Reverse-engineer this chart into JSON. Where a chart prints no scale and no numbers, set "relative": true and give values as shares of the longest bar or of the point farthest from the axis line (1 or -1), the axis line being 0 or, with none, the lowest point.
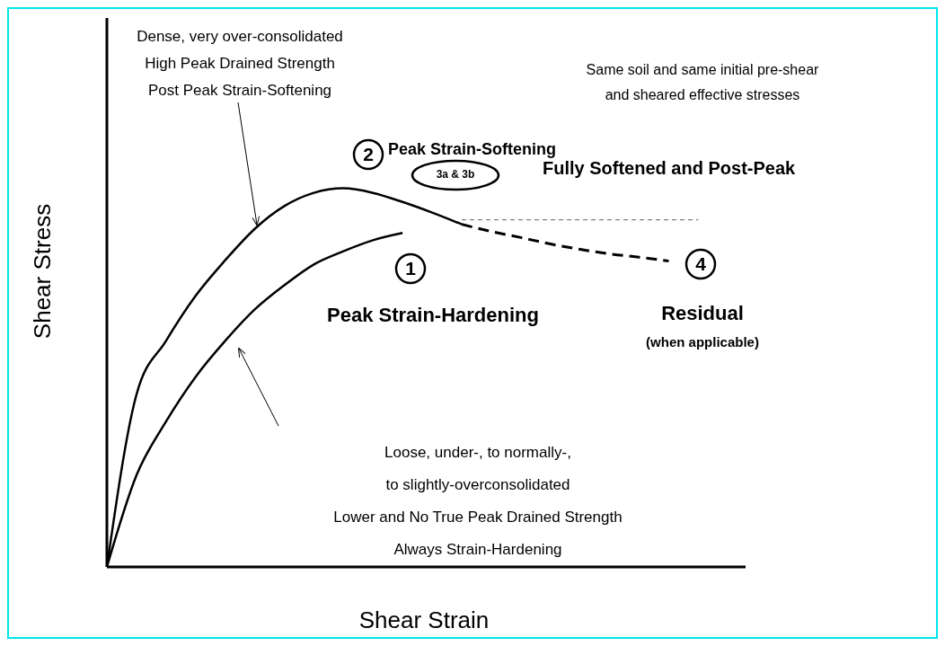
{
  "chart_data": {
    "type": "line",
    "relative": true,
    "xlabel": "Shear Strain",
    "ylabel": "Shear Stress",
    "marker": "none",
    "line_style": "solid",
    "categories": [
      null,
      null,
      null,
      null,
      null,
      null,
      null,
      null,
      null,
      null,
      null,
      null,
      null,
      null,
      null,
      null,
      null,
      null,
      null,
      null,
      null
    ],
    "series": [
      {
        "color": "#000000",
        "values": [
          0,
          0.455,
          0.597,
          0.716,
          0.81,
          0.893,
          0.953,
          0.988,
          1,
          0.988,
          0.964,
          0.936,
          0.905,
          null,
          null,
          null,
          null,
          null,
          null,
          null,
          null
        ]
      },
      {
        "color": "#000000",
        "line_style": "dashed",
        "values": [
          null,
          null,
          null,
          null,
          null,
          null,
          null,
          null,
          null,
          null,
          null,
          null,
          0.905,
          0.886,
          0.87,
          0.853,
          0.839,
          0.827,
          0.818,
          0.808,
          null
        ]
      },
      {
        "color": "#808080",
        "line_style": "dotted",
        "values": [
          null,
          null,
          null,
          null,
          null,
          null,
          null,
          null,
          null,
          null,
          null,
          null,
          0.917,
          0.917,
          0.917,
          0.917,
          0.917,
          0.917,
          0.917,
          0.917,
          0.917
        ]
      },
      {
        "color": "#000000",
        "values": [
          0,
          0.242,
          0.384,
          0.502,
          0.597,
          0.68,
          0.744,
          0.799,
          0.834,
          0.863,
          0.882,
          null,
          null,
          null,
          null,
          null,
          null,
          null,
          null,
          null,
          null
        ]
      }
    ],
    "annotations": [
      "Dense, very over-consolidated\nHigh Peak Drained Strength\nPost Peak Strain-Softening",
      "Same soil and same initial pre-shear\nand sheared effective stresses",
      "2",
      "Peak Strain-Softening",
      "3a & 3b",
      "Fully Softened and Post-Peak",
      "1",
      "Peak Strain-Hardening",
      "4",
      "Residual",
      "(when applicable)",
      "Loose, under-, to normally-,\nto slightly-overconsolidated\nLower and No True Peak Drained Strength\nAlways Strain-Hardening"
    ]
  }
}
